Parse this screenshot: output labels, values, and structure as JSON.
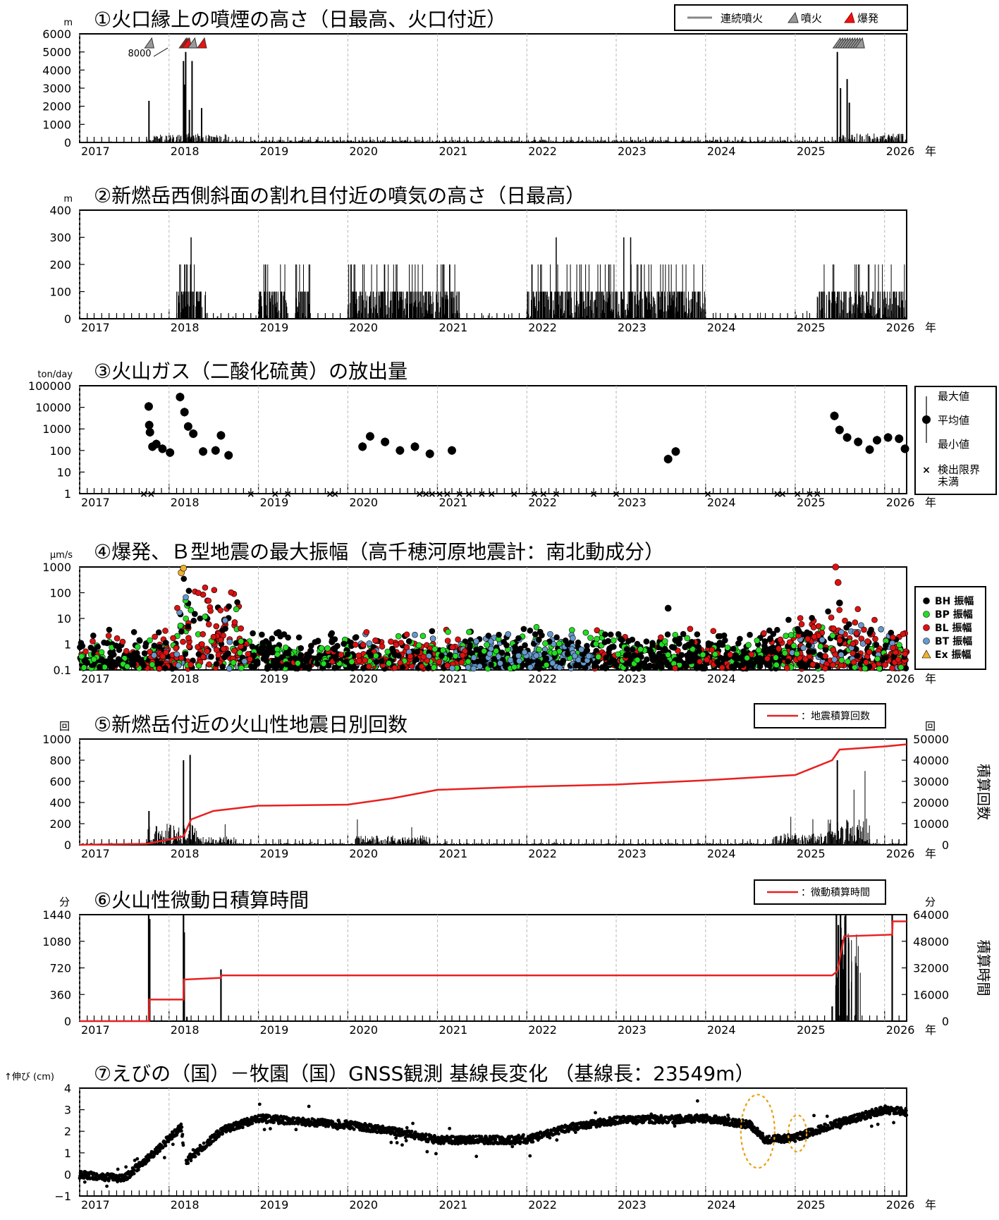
{
  "chart_data": [
    {
      "type": "bar",
      "title": "①火口縁上の噴煙の高さ（日最高、火口付近）",
      "unit": "m",
      "ylim": [
        0,
        6000
      ],
      "yticks": [
        "0",
        "1000",
        "2000",
        "3000",
        "4000",
        "5000",
        "6000"
      ],
      "legend": [
        "連続噴火",
        "噴火",
        "爆発"
      ],
      "annotation": "8000",
      "x_range": [
        "2017-01-01",
        "2026-04-01"
      ],
      "spikes": [
        {
          "x": "2017-10-11",
          "value": 2300
        },
        {
          "x": "2018-03-01",
          "value": 4500
        },
        {
          "x": "2018-03-06",
          "value": 3200
        },
        {
          "x": "2018-03-10",
          "value": 5000
        },
        {
          "x": "2018-03-25",
          "value": 1800
        },
        {
          "x": "2018-04-05",
          "value": 4500
        },
        {
          "x": "2018-05-14",
          "value": 1900
        },
        {
          "x": "2025-06-22",
          "value": 5000
        },
        {
          "x": "2025-07-05",
          "value": 3000
        },
        {
          "x": "2025-08-01",
          "value": 3500
        },
        {
          "x": "2025-08-10",
          "value": 2200
        }
      ]
    },
    {
      "type": "bar",
      "title": "②新燃岳西側斜面の割れ目付近の噴気の高さ（日最高）",
      "unit": "m",
      "ylim": [
        0,
        400
      ],
      "yticks": [
        "0",
        "100",
        "200",
        "300",
        "400"
      ],
      "peaks": [
        {
          "x": "2018-04-01",
          "value": 300
        },
        {
          "x": "2022-05-01",
          "value": 300
        },
        {
          "x": "2023-02-01",
          "value": 300
        },
        {
          "x": "2023-03-01",
          "value": 300
        }
      ]
    },
    {
      "type": "scatter",
      "title": "③火山ガス（二酸化硫黄）の放出量",
      "unit": "ton/day",
      "yscale": "log",
      "ylim": [
        1,
        100000
      ],
      "yticks": [
        "1",
        "10",
        "100",
        "1000",
        "10000",
        "100000"
      ],
      "legend": [
        "最大値",
        "平均値",
        "最小値",
        "検出限界",
        "未満"
      ],
      "points": [
        {
          "x": "2017-10-10",
          "value": 11000
        },
        {
          "x": "2017-10-12",
          "value": 1500
        },
        {
          "x": "2017-10-15",
          "value": 700
        },
        {
          "x": "2017-10-25",
          "value": 150
        },
        {
          "x": "2017-11-10",
          "value": 200
        },
        {
          "x": "2017-12-05",
          "value": 120
        },
        {
          "x": "2018-01-05",
          "value": 80
        },
        {
          "x": "2018-02-15",
          "value": 30000
        },
        {
          "x": "2018-03-05",
          "value": 6000
        },
        {
          "x": "2018-03-20",
          "value": 1300
        },
        {
          "x": "2018-04-10",
          "value": 600
        },
        {
          "x": "2018-05-20",
          "value": 90
        },
        {
          "x": "2018-07-10",
          "value": 100
        },
        {
          "x": "2018-08-01",
          "value": 500
        },
        {
          "x": "2018-09-01",
          "value": 60
        },
        {
          "x": "2020-03-01",
          "value": 150
        },
        {
          "x": "2020-04-01",
          "value": 450
        },
        {
          "x": "2020-06-01",
          "value": 250
        },
        {
          "x": "2020-08-01",
          "value": 100
        },
        {
          "x": "2020-10-01",
          "value": 150
        },
        {
          "x": "2020-12-01",
          "value": 70
        },
        {
          "x": "2021-03-01",
          "value": 100
        },
        {
          "x": "2023-08-01",
          "value": 40
        },
        {
          "x": "2023-09-01",
          "value": 90
        },
        {
          "x": "2025-06-10",
          "value": 4000
        },
        {
          "x": "2025-07-01",
          "value": 900
        },
        {
          "x": "2025-08-01",
          "value": 400
        },
        {
          "x": "2025-09-15",
          "value": 250
        },
        {
          "x": "2025-11-01",
          "value": 110
        },
        {
          "x": "2025-12-01",
          "value": 300
        },
        {
          "x": "2026-01-15",
          "value": 400
        },
        {
          "x": "2026-03-01",
          "value": 350
        },
        {
          "x": "2026-03-25",
          "value": 120
        }
      ]
    },
    {
      "type": "scatter",
      "title": "④爆発、Ｂ型地震の最大振幅（高千穂河原地震計：南北動成分）",
      "unit": "μm/s",
      "yscale": "log",
      "ylim": [
        0.1,
        1000
      ],
      "yticks": [
        "0.1",
        "1",
        "10",
        "100",
        "1000"
      ],
      "legend": [
        "BH 振幅",
        "BP 振幅",
        "BL 振幅",
        "BT 振幅",
        "Ex 振幅"
      ],
      "series_colors": [
        "#000000",
        "#22dd22",
        "#dd1111",
        "#6699cc",
        "#f0b030"
      ]
    },
    {
      "type": "bar",
      "title": "⑤新燃岳付近の火山性地震日別回数",
      "unit": "回",
      "right_unit": "回",
      "ylim": [
        0,
        1000
      ],
      "yticks": [
        "0",
        "200",
        "400",
        "600",
        "800",
        "1000"
      ],
      "y2lim": [
        0,
        50000
      ],
      "y2ticks": [
        "0",
        "10000",
        "20000",
        "30000",
        "40000",
        "50000"
      ],
      "y2label": "積算回数",
      "legend": "：地震積算回数",
      "spikes": [
        {
          "x": "2017-10-11",
          "value": 320
        },
        {
          "x": "2018-03-01",
          "value": 800
        },
        {
          "x": "2018-03-28",
          "value": 850
        },
        {
          "x": "2025-06-22",
          "value": 800
        }
      ],
      "cumulative": [
        {
          "x": "2017-01-01",
          "value": 0
        },
        {
          "x": "2017-10-01",
          "value": 500
        },
        {
          "x": "2018-01-01",
          "value": 2500
        },
        {
          "x": "2018-03-01",
          "value": 4000
        },
        {
          "x": "2018-04-01",
          "value": 12000
        },
        {
          "x": "2018-07-01",
          "value": 16000
        },
        {
          "x": "2019-01-01",
          "value": 18500
        },
        {
          "x": "2020-01-01",
          "value": 19000
        },
        {
          "x": "2020-07-01",
          "value": 22000
        },
        {
          "x": "2021-01-01",
          "value": 26000
        },
        {
          "x": "2022-01-01",
          "value": 27500
        },
        {
          "x": "2023-01-01",
          "value": 28500
        },
        {
          "x": "2024-01-01",
          "value": 30500
        },
        {
          "x": "2025-01-01",
          "value": 33000
        },
        {
          "x": "2025-06-01",
          "value": 40000
        },
        {
          "x": "2025-07-01",
          "value": 45000
        },
        {
          "x": "2026-01-01",
          "value": 46500
        },
        {
          "x": "2026-04-01",
          "value": 47500
        }
      ]
    },
    {
      "type": "bar",
      "title": "⑥火山性微動日積算時間",
      "unit": "分",
      "right_unit": "分",
      "ylim": [
        0,
        1440
      ],
      "yticks": [
        "0",
        "360",
        "720",
        "1080",
        "1440"
      ],
      "y2lim": [
        0,
        64000
      ],
      "y2ticks": [
        "0",
        "16000",
        "32000",
        "48000",
        "64000"
      ],
      "y2label": "積算時間",
      "legend": "：微動積算時間",
      "cumulative": [
        {
          "x": "2017-01-01",
          "value": 0
        },
        {
          "x": "2017-10-11",
          "value": 0
        },
        {
          "x": "2017-10-12",
          "value": 13000
        },
        {
          "x": "2018-03-01",
          "value": 13000
        },
        {
          "x": "2018-03-03",
          "value": 25000
        },
        {
          "x": "2018-08-01",
          "value": 26000
        },
        {
          "x": "2018-08-03",
          "value": 27500
        },
        {
          "x": "2025-06-01",
          "value": 27500
        },
        {
          "x": "2025-06-22",
          "value": 30000
        },
        {
          "x": "2025-07-20",
          "value": 51000
        },
        {
          "x": "2026-02-01",
          "value": 52000
        },
        {
          "x": "2026-02-03",
          "value": 60000
        },
        {
          "x": "2026-04-01",
          "value": 60000
        }
      ]
    },
    {
      "type": "scatter",
      "title": "⑦えびの（国）－牧園（国）GNSS観測 基線長変化 （基線長：23549m）",
      "unit": "↑伸び (cm)",
      "ylim": [
        -1,
        4
      ],
      "yticks": [
        "−1",
        "0",
        "1",
        "2",
        "3",
        "4"
      ],
      "trend": [
        {
          "x": "2017-01-01",
          "value": 0.0
        },
        {
          "x": "2017-07-01",
          "value": -0.2
        },
        {
          "x": "2017-11-01",
          "value": 1.0
        },
        {
          "x": "2018-02-20",
          "value": 2.2
        },
        {
          "x": "2018-03-10",
          "value": 0.6
        },
        {
          "x": "2018-08-01",
          "value": 2.0
        },
        {
          "x": "2019-01-01",
          "value": 2.6
        },
        {
          "x": "2020-01-01",
          "value": 2.3
        },
        {
          "x": "2020-07-01",
          "value": 2.0
        },
        {
          "x": "2021-01-01",
          "value": 1.6
        },
        {
          "x": "2022-01-01",
          "value": 1.6
        },
        {
          "x": "2022-07-01",
          "value": 2.2
        },
        {
          "x": "2023-01-01",
          "value": 2.5
        },
        {
          "x": "2024-01-01",
          "value": 2.6
        },
        {
          "x": "2024-07-01",
          "value": 2.3
        },
        {
          "x": "2024-09-01",
          "value": 1.6
        },
        {
          "x": "2025-01-01",
          "value": 1.7
        },
        {
          "x": "2025-06-01",
          "value": 2.3
        },
        {
          "x": "2026-01-01",
          "value": 3.0
        },
        {
          "x": "2026-04-01",
          "value": 2.9
        }
      ]
    }
  ],
  "x_axis": {
    "years": [
      "2017",
      "2018",
      "2019",
      "2020",
      "2021",
      "2022",
      "2023",
      "2024",
      "2025",
      "2026"
    ],
    "unit_label": "年"
  }
}
